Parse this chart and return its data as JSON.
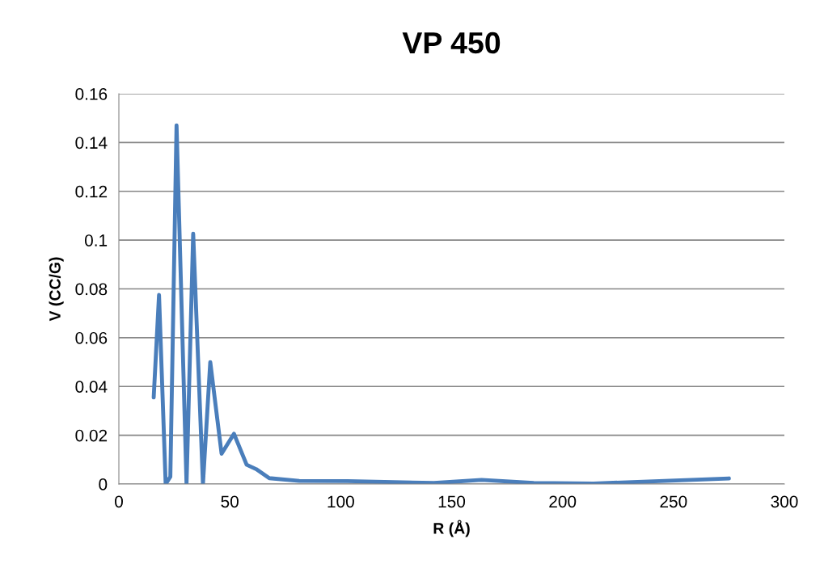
{
  "chart_data": {
    "type": "line",
    "title": "VP 450",
    "xlabel": "R (Å)",
    "ylabel": "V (CC/G)",
    "series": [
      {
        "color": "#4a7ebb",
        "x": [
          15.7,
          18.1,
          21.1,
          23.2,
          26.0,
          30.5,
          33.5,
          37.9,
          41.2,
          46.3,
          51.9,
          57.6,
          61.9,
          67.8,
          81.3,
          103,
          142,
          163.5,
          187,
          214,
          275
        ],
        "values": [
          0.0355,
          0.0775,
          0,
          0.003,
          0.147,
          0,
          0.1026,
          0,
          0.05,
          0.0124,
          0.0206,
          0.0079,
          0.0061,
          0.0024,
          0.0013,
          0.0012,
          0.0004,
          0.0017,
          0.0004,
          0.0002,
          0.0023
        ]
      }
    ],
    "xlim": [
      0,
      300
    ],
    "xticks": [
      0,
      50,
      100,
      150,
      200,
      250,
      300
    ],
    "ylim": [
      0,
      0.16
    ],
    "yticks": [
      0,
      0.02,
      0.04,
      0.06,
      0.08,
      0.1,
      0.12,
      0.14,
      0.16
    ],
    "grid": "y",
    "marker": "none",
    "line_style": "solid"
  }
}
